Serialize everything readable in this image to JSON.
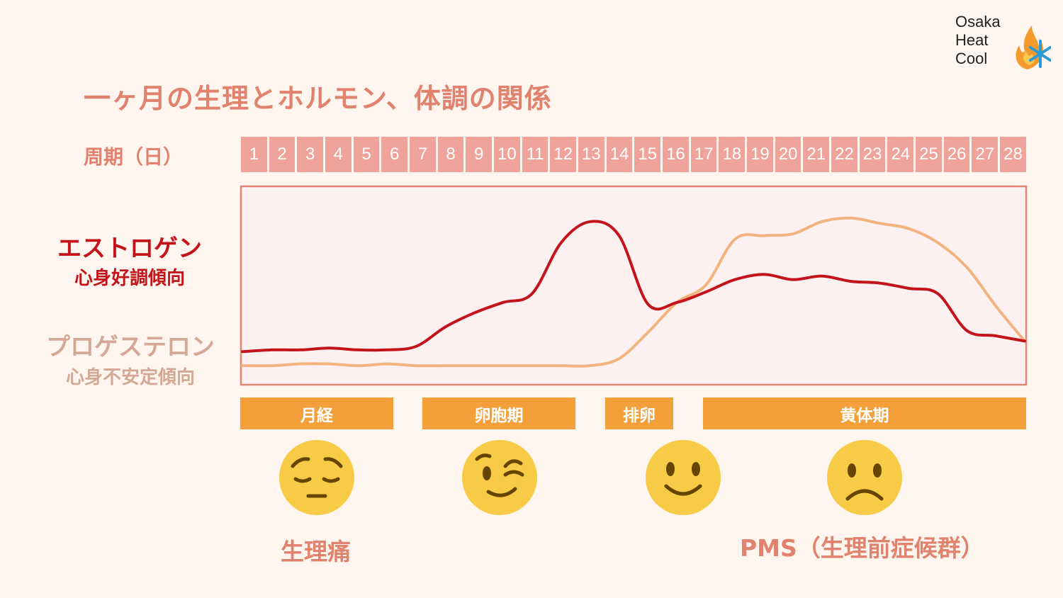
{
  "title": "一ヶ月の生理とホルモン、体調の関係",
  "logo": {
    "lines": [
      "Osaka",
      "Heat",
      "Cool"
    ]
  },
  "cycle_label": "周期（日）",
  "days": [
    "1",
    "2",
    "3",
    "4",
    "5",
    "6",
    "7",
    "8",
    "9",
    "10",
    "11",
    "12",
    "13",
    "14",
    "15",
    "16",
    "17",
    "18",
    "19",
    "20",
    "21",
    "22",
    "23",
    "24",
    "25",
    "26",
    "27",
    "28"
  ],
  "legend": {
    "estrogen": {
      "name": "エストロゲン",
      "desc": "心身好調傾向",
      "color": "#c4141b"
    },
    "progesterone": {
      "name": "プロゲステロン",
      "desc": "心身不安定傾向",
      "color": "#f2b47e"
    }
  },
  "phases": [
    {
      "label": "月経"
    },
    {
      "label": "卵胞期"
    },
    {
      "label": "排卵"
    },
    {
      "label": "黄体期"
    }
  ],
  "faces": [
    {
      "icon": "pensive-face-icon",
      "phase": "月経"
    },
    {
      "icon": "winking-face-icon",
      "phase": "卵胞期"
    },
    {
      "icon": "smiling-face-icon",
      "phase": "排卵"
    },
    {
      "icon": "frowning-face-icon",
      "phase": "黄体期"
    }
  ],
  "notes": {
    "menstruation": "生理痛",
    "luteal": "PMS（生理前症候群）"
  },
  "colors": {
    "accent": "#e0826e",
    "day_cell": "#f0a39a",
    "phase_bar": "#f3a03a",
    "plot_bg": "#fdf0f0",
    "plot_border": "#e28575",
    "face": "#f7cb45"
  },
  "chart_data": {
    "type": "line",
    "xlabel": "周期（日）",
    "x": [
      1,
      2,
      3,
      4,
      5,
      6,
      7,
      8,
      9,
      10,
      11,
      12,
      13,
      14,
      15,
      16,
      17,
      18,
      19,
      20,
      21,
      22,
      23,
      24,
      25,
      26,
      27,
      28
    ],
    "ylim": [
      0,
      100
    ],
    "series": [
      {
        "name": "エストロゲン",
        "color": "#c4141b",
        "values": [
          14,
          15,
          15,
          16,
          15,
          15,
          17,
          28,
          36,
          42,
          47,
          76,
          88,
          80,
          41,
          42,
          48,
          55,
          58,
          55,
          57,
          54,
          53,
          50,
          47,
          26,
          23,
          20
        ]
      },
      {
        "name": "プロゲステロン",
        "color": "#f2b47e",
        "values": [
          6,
          6,
          7,
          7,
          6,
          7,
          6,
          6,
          6,
          6,
          6,
          6,
          6,
          10,
          25,
          42,
          52,
          78,
          80,
          81,
          88,
          90,
          87,
          84,
          76,
          62,
          40,
          20
        ]
      }
    ],
    "grid": false
  }
}
